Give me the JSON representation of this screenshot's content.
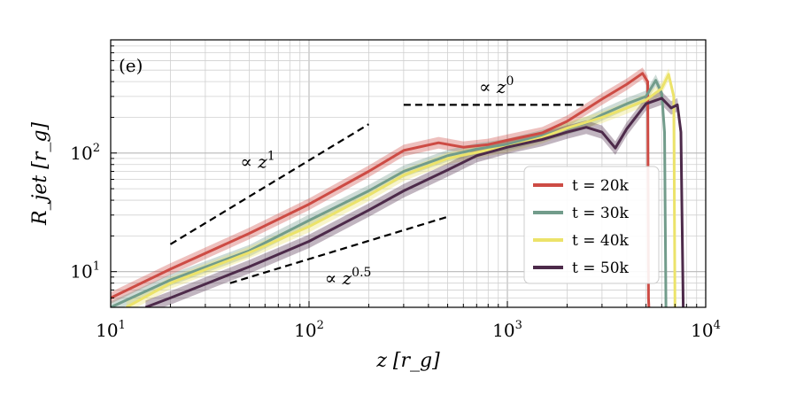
{
  "chart_data": {
    "type": "line",
    "panel_label": "(e)",
    "xlabel": "z [r_g]",
    "ylabel": "R_jet [r_g]",
    "xscale": "log",
    "yscale": "log",
    "xlim": [
      10,
      10000
    ],
    "ylim": [
      5,
      900
    ],
    "grid": true,
    "legend_position": "center-right",
    "x_ticks": [
      {
        "value": 10,
        "base": "10",
        "exp": "1"
      },
      {
        "value": 100,
        "base": "10",
        "exp": "2"
      },
      {
        "value": 1000,
        "base": "10",
        "exp": "3"
      },
      {
        "value": 10000,
        "base": "10",
        "exp": "4"
      }
    ],
    "y_ticks": [
      {
        "value": 10,
        "base": "10",
        "exp": "1"
      },
      {
        "value": 100,
        "base": "10",
        "exp": "2"
      }
    ],
    "series": [
      {
        "name": "t = 20k",
        "color": "#cd4b44",
        "points": [
          [
            10,
            6
          ],
          [
            20,
            10.5
          ],
          [
            50,
            21
          ],
          [
            100,
            37
          ],
          [
            200,
            70
          ],
          [
            300,
            105
          ],
          [
            450,
            122
          ],
          [
            600,
            112
          ],
          [
            800,
            118
          ],
          [
            1000,
            128
          ],
          [
            1500,
            148
          ],
          [
            2000,
            185
          ],
          [
            3000,
            285
          ],
          [
            4000,
            380
          ],
          [
            4800,
            470
          ],
          [
            5100,
            400
          ],
          [
            5150,
            6
          ],
          [
            5170,
            5
          ]
        ],
        "band": 0.12
      },
      {
        "name": "t = 30k",
        "color": "#729c8b",
        "points": [
          [
            10,
            5
          ],
          [
            20,
            8.5
          ],
          [
            50,
            15
          ],
          [
            100,
            27
          ],
          [
            200,
            48
          ],
          [
            300,
            70
          ],
          [
            500,
            95
          ],
          [
            700,
            108
          ],
          [
            1000,
            118
          ],
          [
            1500,
            140
          ],
          [
            2000,
            160
          ],
          [
            2500,
            180
          ],
          [
            3000,
            210
          ],
          [
            4000,
            260
          ],
          [
            5000,
            300
          ],
          [
            5600,
            410
          ],
          [
            6000,
            320
          ],
          [
            6200,
            150
          ],
          [
            6300,
            5
          ]
        ],
        "band": 0.12
      },
      {
        "name": "t = 40k",
        "color": "#ece36a",
        "points": [
          [
            12,
            5
          ],
          [
            20,
            8
          ],
          [
            50,
            14.5
          ],
          [
            100,
            24
          ],
          [
            200,
            44
          ],
          [
            300,
            65
          ],
          [
            500,
            90
          ],
          [
            800,
            106
          ],
          [
            1000,
            113
          ],
          [
            1500,
            135
          ],
          [
            2000,
            162
          ],
          [
            3000,
            200
          ],
          [
            4000,
            240
          ],
          [
            5000,
            280
          ],
          [
            6000,
            350
          ],
          [
            6500,
            460
          ],
          [
            6900,
            300
          ],
          [
            7000,
            5
          ]
        ],
        "band": 0.12
      },
      {
        "name": "t = 50k",
        "color": "#4d2a4a",
        "points": [
          [
            15,
            5
          ],
          [
            20,
            6
          ],
          [
            50,
            11
          ],
          [
            100,
            18
          ],
          [
            200,
            33
          ],
          [
            300,
            48
          ],
          [
            500,
            72
          ],
          [
            700,
            95
          ],
          [
            1000,
            112
          ],
          [
            1500,
            130
          ],
          [
            2000,
            150
          ],
          [
            2500,
            165
          ],
          [
            3000,
            150
          ],
          [
            3500,
            110
          ],
          [
            4000,
            160
          ],
          [
            5000,
            260
          ],
          [
            6000,
            290
          ],
          [
            6700,
            240
          ],
          [
            7200,
            255
          ],
          [
            7500,
            150
          ],
          [
            7700,
            5
          ]
        ],
        "band": 0.14
      }
    ],
    "reference_lines": [
      {
        "label_base": "∝ z",
        "label_exp": "1",
        "points": [
          [
            20,
            17
          ],
          [
            200,
            175
          ]
        ],
        "label_at": [
          45,
          75
        ]
      },
      {
        "label_base": "∝ z",
        "label_exp": "0.5",
        "points": [
          [
            40,
            8
          ],
          [
            500,
            29
          ]
        ],
        "label_at": [
          120,
          7.8
        ]
      },
      {
        "label_base": "∝ z",
        "label_exp": "0",
        "points": [
          [
            300,
            255
          ],
          [
            2500,
            255
          ]
        ],
        "label_at": [
          720,
          320
        ]
      }
    ]
  }
}
